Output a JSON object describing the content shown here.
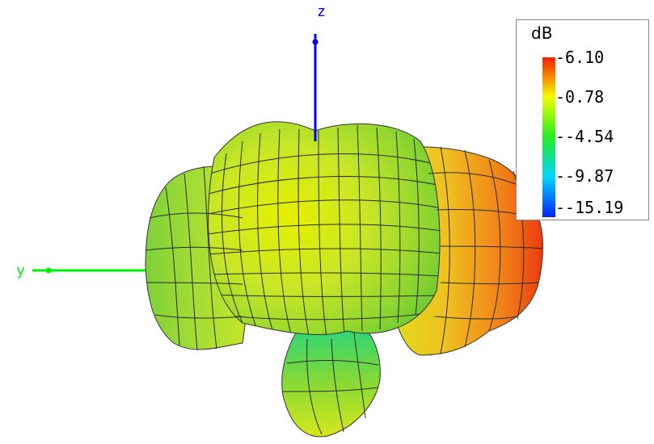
{
  "axes": {
    "z_label": "z",
    "y_label": "y",
    "colors": {
      "z": "#0000ff",
      "y": "#00ee00"
    }
  },
  "legend": {
    "unit": "dB",
    "ticks": [
      "-6.10",
      "-0.78",
      "--4.54",
      "--9.87",
      "--15.19"
    ],
    "colors": [
      "#ff1a00",
      "#f2ff00",
      "#22ee22",
      "#00d6ff",
      "#0022ff"
    ]
  }
}
